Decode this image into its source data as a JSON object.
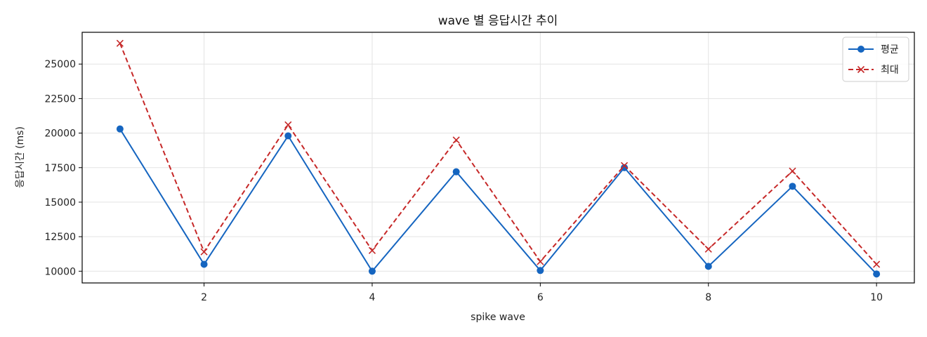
{
  "chart_data": {
    "type": "line",
    "title": "wave 별 응답시간 추이",
    "xlabel": "spike wave",
    "ylabel": "응답시간 (ms)",
    "x": [
      1,
      2,
      3,
      4,
      5,
      6,
      7,
      8,
      9,
      10
    ],
    "xlim": [
      0.55,
      10.45
    ],
    "ylim": [
      9150,
      27300
    ],
    "xticks": [
      2,
      4,
      6,
      8,
      10
    ],
    "yticks": [
      10000,
      12500,
      15000,
      17500,
      20000,
      22500,
      25000
    ],
    "grid": true,
    "legend_position": "top-right",
    "series": [
      {
        "name": "평균",
        "color": "#1565c0",
        "line_style": "solid",
        "marker": "circle",
        "values": [
          20300,
          10500,
          19800,
          10000,
          17200,
          10050,
          17500,
          10350,
          16150,
          9800
        ]
      },
      {
        "name": "최대",
        "color": "#c62828",
        "line_style": "dashed",
        "marker": "x",
        "values": [
          26500,
          11400,
          20600,
          11500,
          19500,
          10700,
          17650,
          11600,
          17250,
          10500
        ]
      }
    ]
  }
}
